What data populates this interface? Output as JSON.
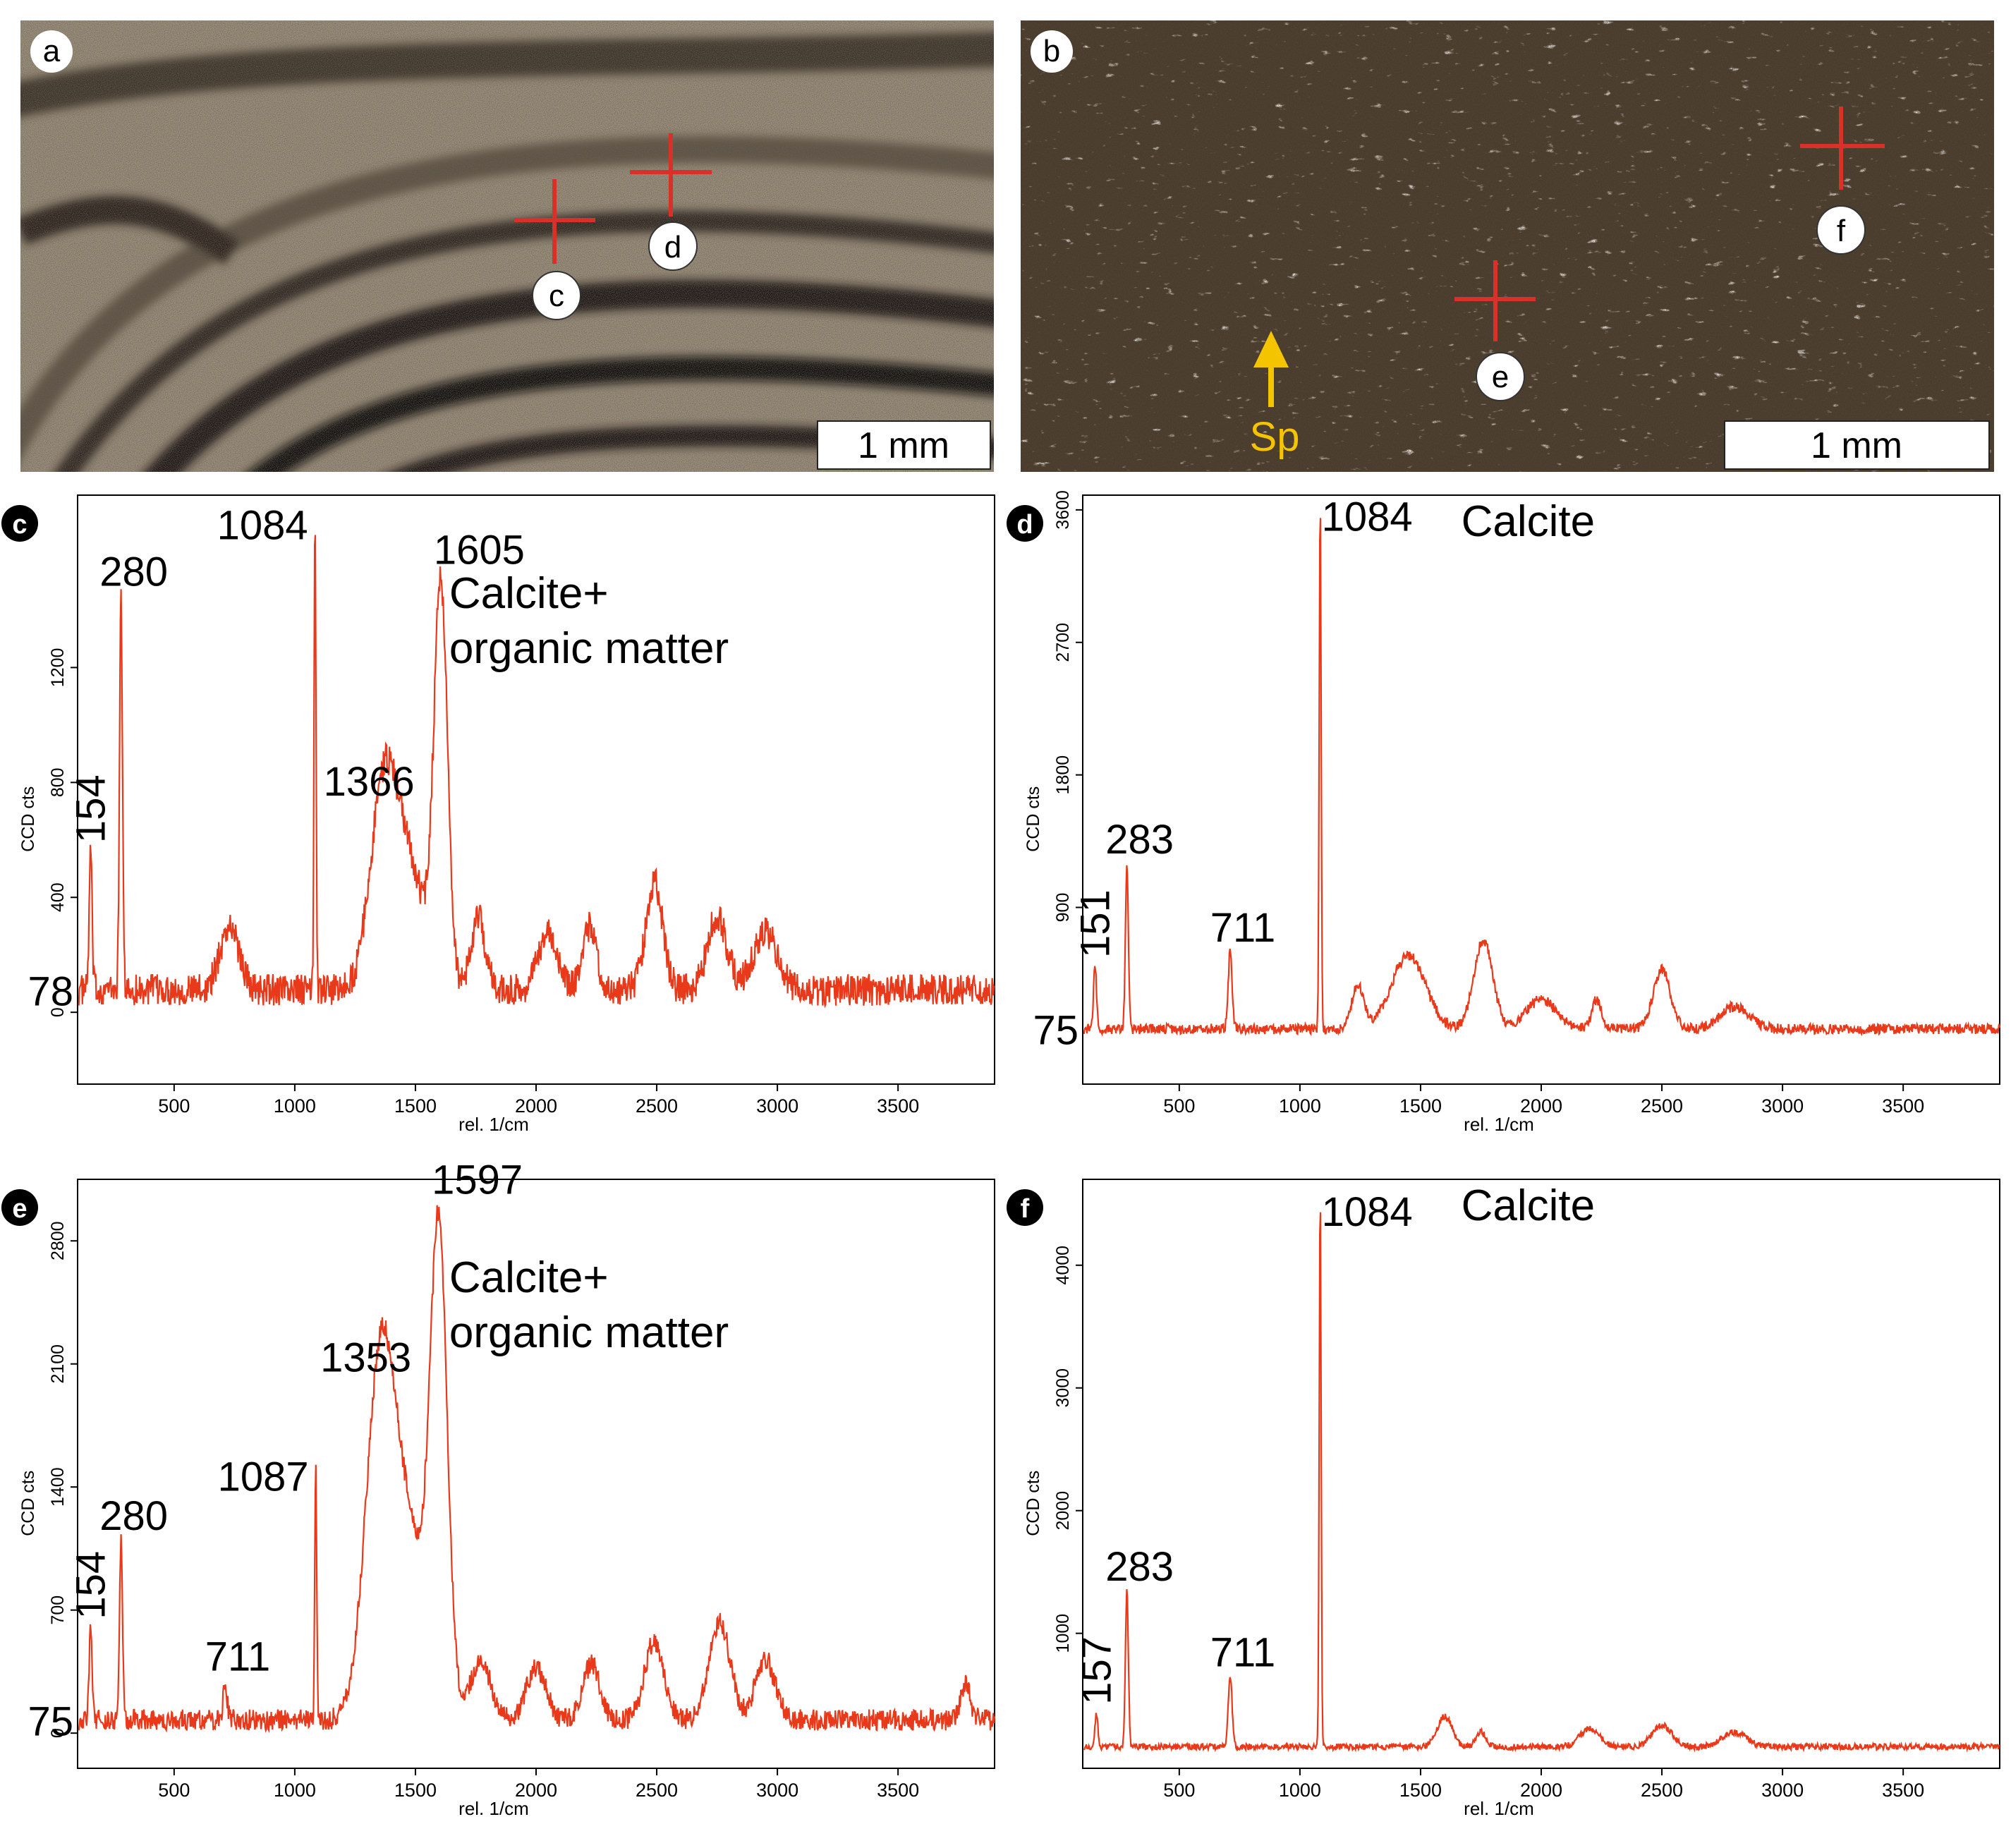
{
  "photos": [
    {
      "label": "a",
      "scale_bar": "1 mm",
      "markers": [
        "c",
        "d"
      ],
      "arrow_label": ""
    },
    {
      "label": "b",
      "scale_bar": "1 mm",
      "markers": [
        "e",
        "f"
      ],
      "arrow_label": "Sp"
    }
  ],
  "colors": {
    "spectrum": "#e8391a",
    "cross": "#d9302a",
    "arrow": "#f5c400",
    "axis": "#000000"
  },
  "chart_data": [
    {
      "panel": "c",
      "type": "line",
      "title": "",
      "annotation": "Calcite+ organic matter",
      "annotation_lines": [
        "Calcite+",
        "organic matter"
      ],
      "xlabel": "rel. 1/cm",
      "ylabel": "CCD cts",
      "xlim": [
        100,
        3900
      ],
      "ylim": [
        -250,
        1800
      ],
      "xticks": [
        500,
        1000,
        1500,
        2000,
        2500,
        3000,
        3500
      ],
      "yticks": [
        0,
        400,
        800,
        1200
      ],
      "baseline_label": "78",
      "baseline": 78,
      "noise": 55,
      "peaks": [
        {
          "label": "154",
          "x": 154,
          "y": 560,
          "vertical": true
        },
        {
          "label": "280",
          "x": 280,
          "y": 1450,
          "vertical": false
        },
        {
          "label": "1084",
          "x": 1084,
          "y": 1720,
          "vertical": false
        },
        {
          "label": "1366",
          "x": 1366,
          "y": 720,
          "vertical": false
        },
        {
          "label": "1605",
          "x": 1605,
          "y": 1580,
          "vertical": false
        }
      ],
      "bands": [
        {
          "x": 730,
          "y": 220,
          "w": 40
        },
        {
          "x": 1366,
          "y": 640,
          "w": 55
        },
        {
          "x": 1470,
          "y": 420,
          "w": 70
        },
        {
          "x": 1605,
          "y": 1380,
          "w": 28
        },
        {
          "x": 1760,
          "y": 250,
          "w": 30
        },
        {
          "x": 2050,
          "y": 200,
          "w": 40
        },
        {
          "x": 2220,
          "y": 220,
          "w": 30
        },
        {
          "x": 2490,
          "y": 380,
          "w": 35
        },
        {
          "x": 2750,
          "y": 260,
          "w": 40
        },
        {
          "x": 2950,
          "y": 200,
          "w": 50
        }
      ]
    },
    {
      "panel": "d",
      "type": "line",
      "title": "",
      "annotation": "Calcite",
      "annotation_lines": [
        "Calcite"
      ],
      "xlabel": "rel. 1/cm",
      "ylabel": "CCD cts",
      "xlim": [
        100,
        3900
      ],
      "ylim": [
        -300,
        3700
      ],
      "xticks": [
        500,
        1000,
        1500,
        2000,
        2500,
        3000,
        3500
      ],
      "yticks": [
        900,
        1800,
        2700,
        3600
      ],
      "baseline_label": "75",
      "baseline": 75,
      "noise": 35,
      "peaks": [
        {
          "label": "151",
          "x": 151,
          "y": 500,
          "vertical": true
        },
        {
          "label": "283",
          "x": 283,
          "y": 1200,
          "vertical": false
        },
        {
          "label": "711",
          "x": 711,
          "y": 600,
          "vertical": false
        },
        {
          "label": "1084",
          "x": 1084,
          "y": 3650,
          "vertical": false
        }
      ],
      "bands": [
        {
          "x": 1240,
          "y": 300,
          "w": 25
        },
        {
          "x": 1450,
          "y": 500,
          "w": 70
        },
        {
          "x": 1760,
          "y": 600,
          "w": 40
        },
        {
          "x": 2000,
          "y": 200,
          "w": 60
        },
        {
          "x": 2230,
          "y": 200,
          "w": 20
        },
        {
          "x": 2500,
          "y": 400,
          "w": 35
        },
        {
          "x": 2800,
          "y": 150,
          "w": 60
        }
      ]
    },
    {
      "panel": "e",
      "type": "line",
      "title": "",
      "annotation": "Calcite+ organic matter",
      "annotation_lines": [
        "Calcite+",
        "organic matter"
      ],
      "xlabel": "rel. 1/cm",
      "ylabel": "CCD cts",
      "xlim": [
        100,
        3900
      ],
      "ylim": [
        -200,
        3150
      ],
      "xticks": [
        500,
        1000,
        1500,
        2000,
        2500,
        3000,
        3500
      ],
      "yticks": [
        0,
        700,
        1400,
        2100,
        2800
      ],
      "baseline_label": "75",
      "baseline": 75,
      "noise": 60,
      "peaks": [
        {
          "label": "154",
          "x": 154,
          "y": 600,
          "vertical": true
        },
        {
          "label": "280",
          "x": 280,
          "y": 1100,
          "vertical": false
        },
        {
          "label": "711",
          "x": 711,
          "y": 300,
          "vertical": false
        },
        {
          "label": "1087",
          "x": 1087,
          "y": 1500,
          "vertical": false
        },
        {
          "label": "1353",
          "x": 1353,
          "y": 2000,
          "vertical": false
        },
        {
          "label": "1597",
          "x": 1597,
          "y": 3100,
          "vertical": false
        }
      ],
      "bands": [
        {
          "x": 1353,
          "y": 1850,
          "w": 60
        },
        {
          "x": 1470,
          "y": 1000,
          "w": 80
        },
        {
          "x": 1597,
          "y": 2600,
          "w": 35
        },
        {
          "x": 1770,
          "y": 350,
          "w": 40
        },
        {
          "x": 2000,
          "y": 300,
          "w": 40
        },
        {
          "x": 2230,
          "y": 320,
          "w": 35
        },
        {
          "x": 2490,
          "y": 450,
          "w": 40
        },
        {
          "x": 2760,
          "y": 550,
          "w": 45
        },
        {
          "x": 2950,
          "y": 350,
          "w": 40
        },
        {
          "x": 3780,
          "y": 200,
          "w": 20
        }
      ]
    },
    {
      "panel": "f",
      "type": "line",
      "title": "",
      "annotation": "Calcite",
      "annotation_lines": [
        "Calcite"
      ],
      "xlabel": "rel. 1/cm",
      "ylabel": "CCD cts",
      "xlim": [
        100,
        3900
      ],
      "ylim": [
        -100,
        4700
      ],
      "xticks": [
        500,
        1000,
        1500,
        2000,
        2500,
        3000,
        3500
      ],
      "yticks": [
        1000,
        2000,
        3000,
        4000
      ],
      "baseline_label": "",
      "baseline": 75,
      "noise": 25,
      "peaks": [
        {
          "label": "157",
          "x": 157,
          "y": 350,
          "vertical": true
        },
        {
          "label": "283",
          "x": 283,
          "y": 1350,
          "vertical": false
        },
        {
          "label": "711",
          "x": 711,
          "y": 650,
          "vertical": false
        },
        {
          "label": "1084",
          "x": 1084,
          "y": 4550,
          "vertical": false
        }
      ],
      "bands": [
        {
          "x": 1600,
          "y": 250,
          "w": 30
        },
        {
          "x": 1750,
          "y": 120,
          "w": 20
        },
        {
          "x": 2200,
          "y": 150,
          "w": 40
        },
        {
          "x": 2500,
          "y": 180,
          "w": 40
        },
        {
          "x": 2800,
          "y": 120,
          "w": 50
        }
      ]
    }
  ]
}
